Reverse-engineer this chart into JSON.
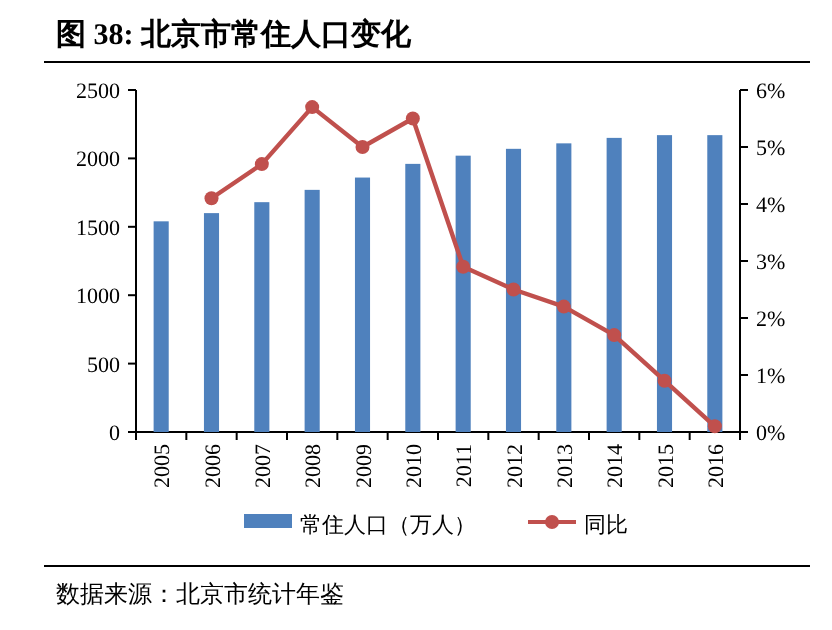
{
  "chart_data": {
    "type": "bar",
    "title": "图 38: 北京市常住人口变化",
    "categories": [
      "2005",
      "2006",
      "2007",
      "2008",
      "2009",
      "2010",
      "2011",
      "2012",
      "2013",
      "2014",
      "2015",
      "2016"
    ],
    "series": [
      {
        "name": "常住人口（万人）",
        "color": "#4f81bd",
        "values": [
          1540,
          1600,
          1680,
          1770,
          1860,
          1960,
          2020,
          2070,
          2110,
          2150,
          2170,
          2170
        ]
      },
      {
        "name": "同比",
        "type": "line",
        "axis": "y2",
        "color": "#c0504d",
        "marker": "circle",
        "values": [
          null,
          4.1,
          4.7,
          5.7,
          5.0,
          5.5,
          2.9,
          2.5,
          2.2,
          1.7,
          0.9,
          0.1
        ]
      }
    ],
    "ylim": [
      0,
      2500
    ],
    "yticks": [
      0,
      500,
      1000,
      1500,
      2000,
      2500
    ],
    "y2lim": [
      0,
      6
    ],
    "y2ticks": [
      {
        "value": 0,
        "label": "0%"
      },
      {
        "value": 1,
        "label": "1%"
      },
      {
        "value": 2,
        "label": "2%"
      },
      {
        "value": 3,
        "label": "3%"
      },
      {
        "value": 4,
        "label": "4%"
      },
      {
        "value": 5,
        "label": "5%"
      },
      {
        "value": 6,
        "label": "6%"
      }
    ],
    "legend": "bottom",
    "annotations": [
      "数据来源：北京市统计年鉴"
    ]
  }
}
